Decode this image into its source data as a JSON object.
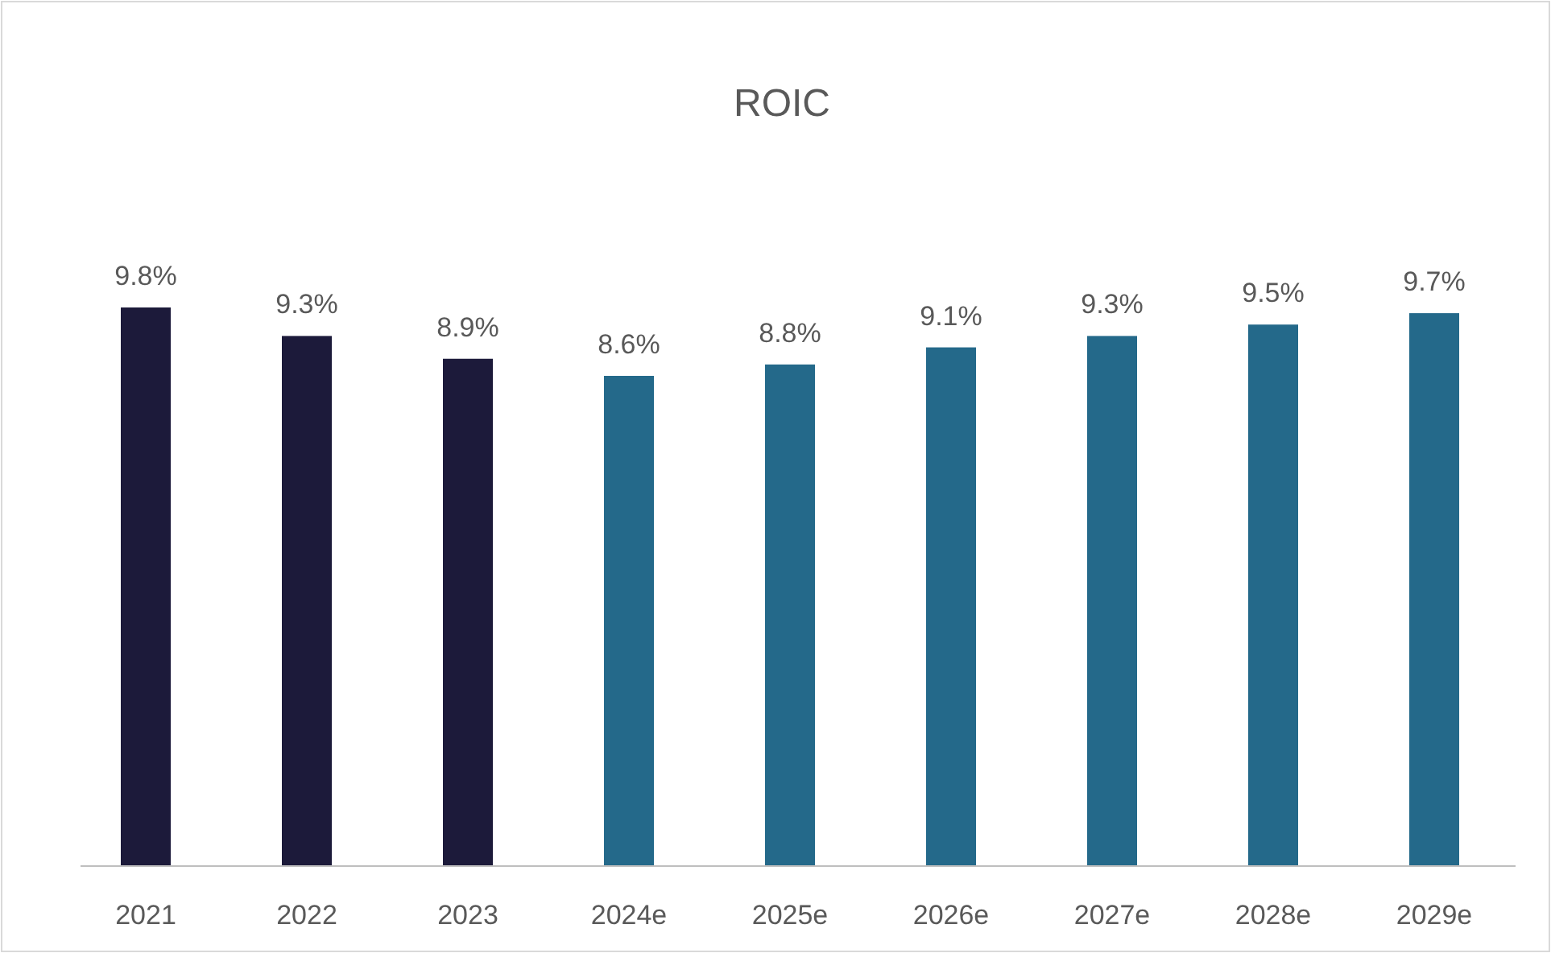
{
  "chart_data": {
    "type": "bar",
    "title": "ROIC",
    "categories": [
      "2021",
      "2022",
      "2023",
      "2024e",
      "2025e",
      "2026e",
      "2027e",
      "2028e",
      "2029e"
    ],
    "values": [
      9.8,
      9.3,
      8.9,
      8.6,
      8.8,
      9.1,
      9.3,
      9.5,
      9.7
    ],
    "value_labels": [
      "9.8%",
      "9.3%",
      "8.9%",
      "8.6%",
      "8.8%",
      "9.1%",
      "9.3%",
      "9.5%",
      "9.7%"
    ],
    "colors": [
      "#1c1a3a",
      "#1c1a3a",
      "#1c1a3a",
      "#24698a",
      "#24698a",
      "#24698a",
      "#24698a",
      "#24698a",
      "#24698a"
    ]
  }
}
